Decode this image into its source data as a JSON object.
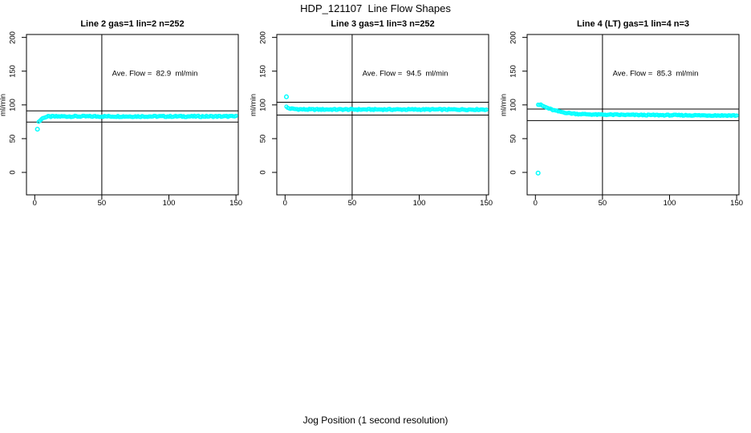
{
  "page": {
    "title": "HDP_121107  Line Flow Shapes",
    "xlabel": "Jog Position (1 second resolution)"
  },
  "colors": {
    "point": "#00ffff",
    "line": "#000000",
    "background": "#ffffff"
  },
  "chart_data": [
    {
      "type": "scatter",
      "title": "Line 2 gas=1 lin=2 n=252",
      "annotation": "Ave. Flow =  82.9  ml/min",
      "ave_flow": 82.9,
      "ylabel": "ml/min",
      "x_ticks": [
        0,
        50,
        100,
        150
      ],
      "y_ticks": [
        0,
        50,
        100,
        150,
        200
      ],
      "xlim": [
        -6,
        152
      ],
      "ylim": [
        -33,
        204
      ],
      "grid": false,
      "vline_x": 50,
      "hlines": [
        91.2,
        74.6
      ],
      "outliers": [
        [
          2,
          64
        ]
      ],
      "series_keypoints": [
        [
          3,
          75
        ],
        [
          5,
          79
        ],
        [
          7,
          81.5
        ],
        [
          10,
          82.7
        ],
        [
          20,
          83
        ],
        [
          150,
          83
        ]
      ],
      "jitter": 0.9
    },
    {
      "type": "scatter",
      "title": "Line 3 gas=1 lin=3 n=252",
      "annotation": "Ave. Flow =  94.5  ml/min",
      "ave_flow": 94.5,
      "ylabel": "ml/min",
      "x_ticks": [
        0,
        50,
        100,
        150
      ],
      "y_ticks": [
        0,
        50,
        100,
        150,
        200
      ],
      "xlim": [
        -6,
        152
      ],
      "ylim": [
        -33,
        204
      ],
      "grid": false,
      "vline_x": 50,
      "hlines": [
        104.0,
        85.0
      ],
      "outliers": [
        [
          1,
          112
        ]
      ],
      "series_keypoints": [
        [
          1,
          97
        ],
        [
          2,
          95.5
        ],
        [
          4,
          94.5
        ],
        [
          8,
          93.8
        ],
        [
          15,
          93.3
        ],
        [
          150,
          93.2
        ]
      ],
      "jitter": 0.8
    },
    {
      "type": "scatter",
      "title": "Line 4 (LT) gas=1 lin=4 n=3",
      "annotation": "Ave. Flow =  85.3  ml/min",
      "ave_flow": 85.3,
      "ylabel": "ml/min",
      "x_ticks": [
        0,
        50,
        100,
        150
      ],
      "y_ticks": [
        0,
        50,
        100,
        150,
        200
      ],
      "xlim": [
        -6,
        152
      ],
      "ylim": [
        -33,
        204
      ],
      "grid": false,
      "vline_x": 50,
      "hlines": [
        93.8,
        76.8
      ],
      "outliers": [
        [
          2,
          -1
        ]
      ],
      "series_keypoints": [
        [
          2,
          100.5
        ],
        [
          4,
          100
        ],
        [
          6,
          98
        ],
        [
          9,
          95.5
        ],
        [
          13,
          92.5
        ],
        [
          18,
          90
        ],
        [
          24,
          88
        ],
        [
          32,
          86.5
        ],
        [
          45,
          85.7
        ],
        [
          70,
          85.2
        ],
        [
          110,
          84.7
        ],
        [
          150,
          84.3
        ]
      ],
      "jitter": 0.7
    }
  ]
}
